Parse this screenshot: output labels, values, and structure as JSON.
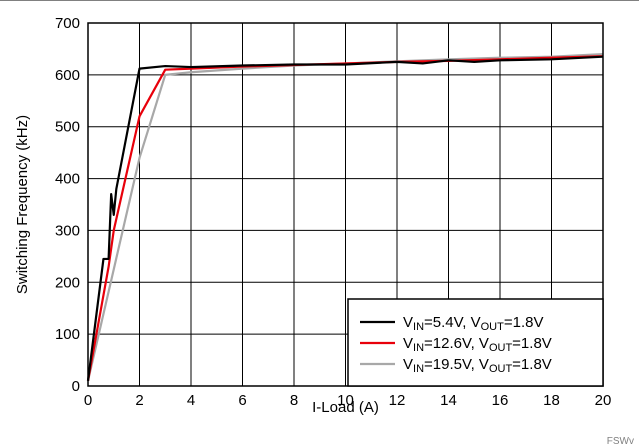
{
  "chart_data": {
    "type": "line",
    "title": "",
    "xlabel": "I-Load (A)",
    "ylabel": "Switching Frequency (kHz)",
    "xlim": [
      0,
      20
    ],
    "ylim": [
      0,
      700
    ],
    "xticks": [
      0,
      2,
      4,
      6,
      8,
      10,
      12,
      14,
      16,
      18,
      20
    ],
    "yticks": [
      0,
      100,
      200,
      300,
      400,
      500,
      600,
      700
    ],
    "grid": true,
    "legend_position": "bottom-right",
    "series": [
      {
        "name": "V_IN=5.4V, V_OUT=1.8V",
        "legend": {
          "a": "V",
          "a_sub": "IN",
          "b": "=5.4V, V",
          "b_sub": "OUT",
          "c": "=1.8V"
        },
        "color": "#000000",
        "x": [
          0,
          0.6,
          0.8,
          0.9,
          1.0,
          1.1,
          2.0,
          3.0,
          4.0,
          6.0,
          8.0,
          10.0,
          12.0,
          13.0,
          14.0,
          15.0,
          16.0,
          18.0,
          20.0
        ],
        "y": [
          10,
          245,
          245,
          370,
          330,
          380,
          612,
          617,
          615,
          618,
          620,
          620,
          625,
          622,
          628,
          625,
          628,
          630,
          635
        ]
      },
      {
        "name": "V_IN=12.6V, V_OUT=1.8V",
        "legend": {
          "a": "V",
          "a_sub": "IN",
          "b": "=12.6V, V",
          "b_sub": "OUT",
          "c": "=1.8V"
        },
        "color": "#e8000b",
        "x": [
          0,
          0.8,
          1.0,
          2.0,
          3.0,
          4.0,
          6.0,
          8.0,
          10.0,
          12.0,
          14.0,
          16.0,
          18.0,
          20.0
        ],
        "y": [
          10,
          230,
          300,
          520,
          610,
          612,
          616,
          619,
          622,
          625,
          627,
          630,
          633,
          636
        ]
      },
      {
        "name": "V_IN=19.5V, V_OUT=1.8V",
        "legend": {
          "a": "V",
          "a_sub": "IN",
          "b": "=19.5V, V",
          "b_sub": "OUT",
          "c": "=1.8V"
        },
        "color": "#a8a8a8",
        "x": [
          0,
          1.0,
          2.0,
          3.0,
          4.0,
          6.0,
          8.0,
          10.0,
          12.0,
          14.0,
          16.0,
          18.0,
          20.0
        ],
        "y": [
          10,
          225,
          440,
          600,
          605,
          612,
          618,
          622,
          626,
          630,
          633,
          635,
          640
        ]
      }
    ]
  },
  "figure_id": "FSWv"
}
